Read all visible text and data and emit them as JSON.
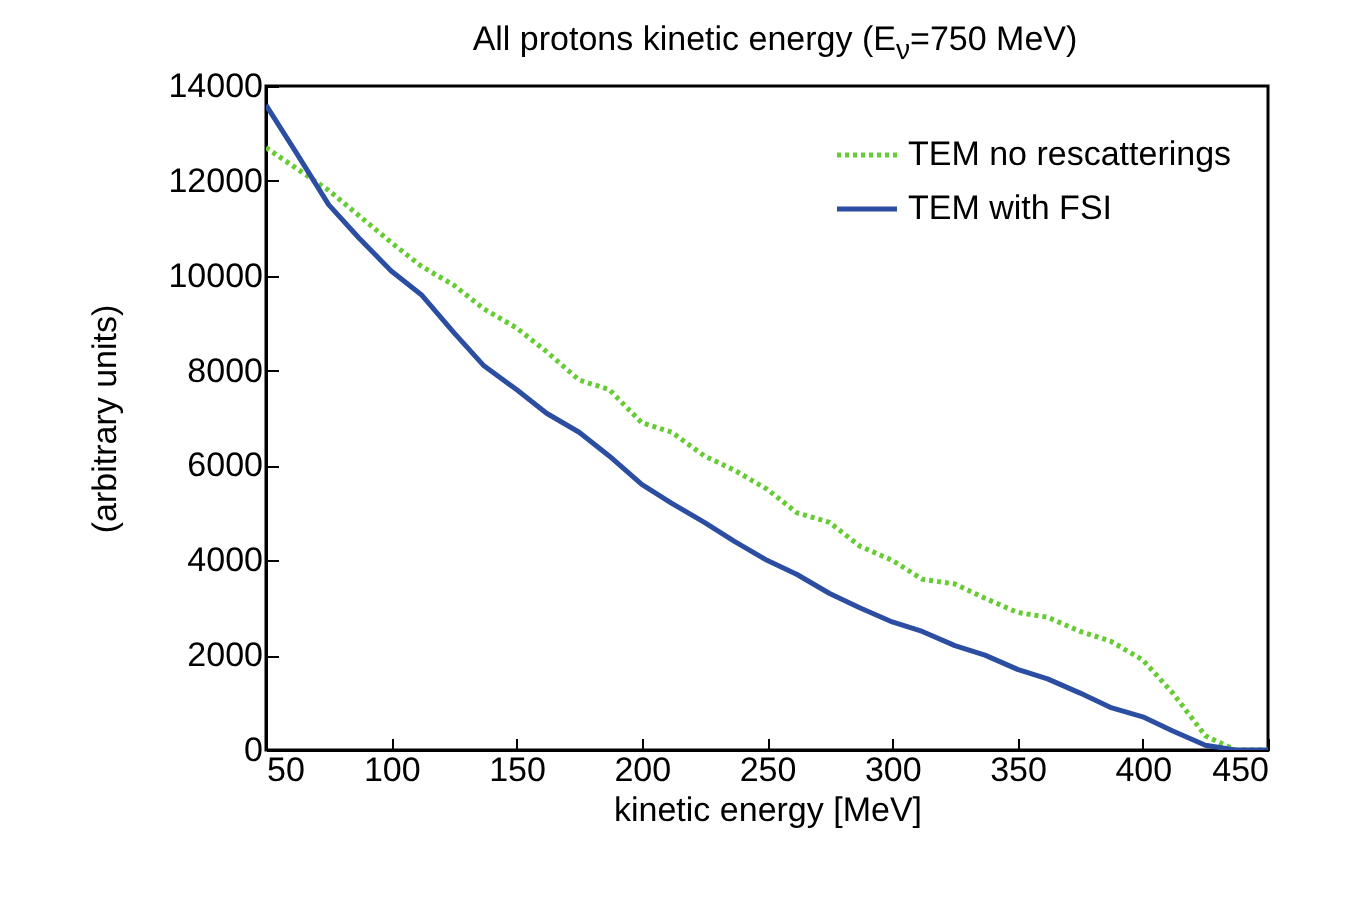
{
  "chart_data": {
    "type": "line",
    "title": "All protons kinetic energy (E$_{ν}$=750 MeV)",
    "xlabel": "kinetic energy [MeV]",
    "ylabel": "(arbitrary units)",
    "xlim": [
      50,
      450
    ],
    "xticks": [
      50,
      100,
      150,
      200,
      250,
      300,
      350,
      400,
      450
    ],
    "ylim": [
      0,
      14000
    ],
    "yticks": [
      0,
      2000,
      4000,
      6000,
      8000,
      10000,
      12000,
      14000
    ],
    "grid": false,
    "legend": "top right",
    "series": [
      {
        "name": "TEM no rescatterings",
        "color": "#66cc33",
        "line_style": "dotted",
        "x": [
          50,
          75,
          100,
          112,
          125,
          137,
          150,
          162,
          175,
          187,
          200,
          212,
          225,
          237,
          250,
          262,
          275,
          287,
          300,
          312,
          325,
          337,
          350,
          362,
          375,
          387,
          400,
          412,
          425,
          437,
          450
        ],
        "values": [
          12700,
          11800,
          10700,
          10200,
          9800,
          9300,
          8900,
          8400,
          7800,
          7600,
          6900,
          6700,
          6200,
          5900,
          5500,
          5000,
          4800,
          4300,
          4000,
          3600,
          3500,
          3200,
          2900,
          2800,
          2500,
          2300,
          1900,
          1200,
          300,
          0,
          0
        ]
      },
      {
        "name": "TEM with FSI",
        "color": "#2b4ea2",
        "line_style": "solid",
        "x": [
          50,
          62,
          75,
          87,
          100,
          112,
          125,
          137,
          150,
          162,
          175,
          187,
          200,
          212,
          225,
          237,
          250,
          262,
          275,
          287,
          300,
          312,
          325,
          337,
          350,
          362,
          375,
          387,
          400,
          412,
          425,
          437,
          450
        ],
        "values": [
          13600,
          12600,
          11500,
          10800,
          10100,
          9600,
          8800,
          8100,
          7600,
          7100,
          6700,
          6200,
          5600,
          5200,
          4800,
          4400,
          4000,
          3700,
          3300,
          3000,
          2700,
          2500,
          2200,
          2000,
          1700,
          1500,
          1200,
          900,
          700,
          400,
          100,
          0,
          0
        ]
      }
    ]
  }
}
